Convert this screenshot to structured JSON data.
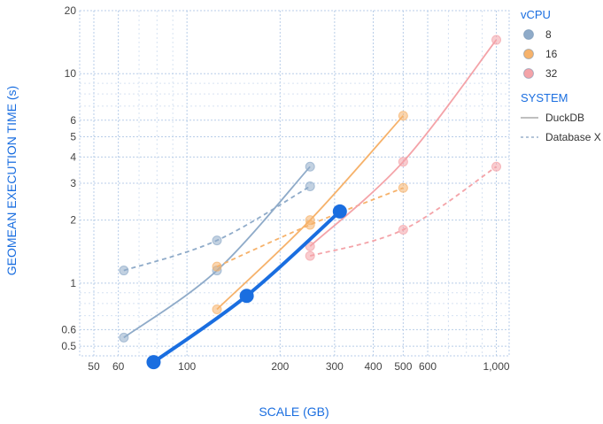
{
  "chart_data": {
    "type": "scatter",
    "xlabel": "SCALE (GB)",
    "ylabel": "GEOMEAN EXECUTION TIME (s)",
    "x_scale": "log",
    "y_scale": "log",
    "xlim": [
      45,
      1100
    ],
    "ylim": [
      0.45,
      20
    ],
    "x_ticks": [
      {
        "v": 50,
        "label": "50"
      },
      {
        "v": 60,
        "label": "60"
      },
      {
        "v": 100,
        "label": "100"
      },
      {
        "v": 200,
        "label": "200"
      },
      {
        "v": 300,
        "label": "300"
      },
      {
        "v": 400,
        "label": "400"
      },
      {
        "v": 500,
        "label": "500"
      },
      {
        "v": 600,
        "label": "600"
      },
      {
        "v": 1000,
        "label": "1,000"
      }
    ],
    "y_ticks": [
      {
        "v": 0.5,
        "label": "0.5"
      },
      {
        "v": 0.6,
        "label": "0.6"
      },
      {
        "v": 1,
        "label": "1"
      },
      {
        "v": 2,
        "label": "2"
      },
      {
        "v": 3,
        "label": "3"
      },
      {
        "v": 4,
        "label": "4"
      },
      {
        "v": 5,
        "label": "5"
      },
      {
        "v": 6,
        "label": "6"
      },
      {
        "v": 10,
        "label": "10"
      },
      {
        "v": 20,
        "label": "20"
      }
    ],
    "grid": true,
    "legend": {
      "position": "right",
      "groups": [
        {
          "title": "vCPU",
          "items": [
            {
              "label": "8",
              "color": "#8fabc9",
              "kind": "dot"
            },
            {
              "label": "16",
              "color": "#f6b26b",
              "kind": "dot"
            },
            {
              "label": "32",
              "color": "#f4a3a8",
              "kind": "dot"
            }
          ]
        },
        {
          "title": "SYSTEM",
          "items": [
            {
              "label": "DuckDB",
              "color": "#aaaaaa",
              "kind": "solid"
            },
            {
              "label": "Database X",
              "color": "#9ab0cc",
              "kind": "dashed"
            }
          ]
        }
      ]
    },
    "series": [
      {
        "vcpu": "8",
        "system": "DuckDB",
        "color": "#8fabc9",
        "style": "solid",
        "x": [
          62.5,
          125,
          250
        ],
        "y": [
          0.55,
          1.15,
          3.6
        ]
      },
      {
        "vcpu": "8",
        "system": "Database X",
        "color": "#8fabc9",
        "style": "dashed",
        "x": [
          62.5,
          125,
          250
        ],
        "y": [
          1.15,
          1.6,
          2.9
        ]
      },
      {
        "vcpu": "16",
        "system": "DuckDB",
        "color": "#f6b26b",
        "style": "solid",
        "x": [
          125,
          250,
          500
        ],
        "y": [
          0.75,
          2.0,
          6.3
        ]
      },
      {
        "vcpu": "16",
        "system": "Database X",
        "color": "#f6b26b",
        "style": "dashed",
        "x": [
          125,
          250,
          500
        ],
        "y": [
          1.2,
          1.9,
          2.85
        ]
      },
      {
        "vcpu": "32",
        "system": "DuckDB",
        "color": "#f4a3a8",
        "style": "solid",
        "x": [
          250,
          500,
          1000
        ],
        "y": [
          1.5,
          3.8,
          14.5
        ]
      },
      {
        "vcpu": "32",
        "system": "Database X",
        "color": "#f4a3a8",
        "style": "dashed",
        "x": [
          250,
          500,
          1000
        ],
        "y": [
          1.35,
          1.8,
          3.6
        ]
      }
    ],
    "highlight": {
      "color": "#1a6ee0",
      "x": [
        78,
        156,
        312
      ],
      "y": [
        0.42,
        0.87,
        2.2
      ]
    }
  }
}
